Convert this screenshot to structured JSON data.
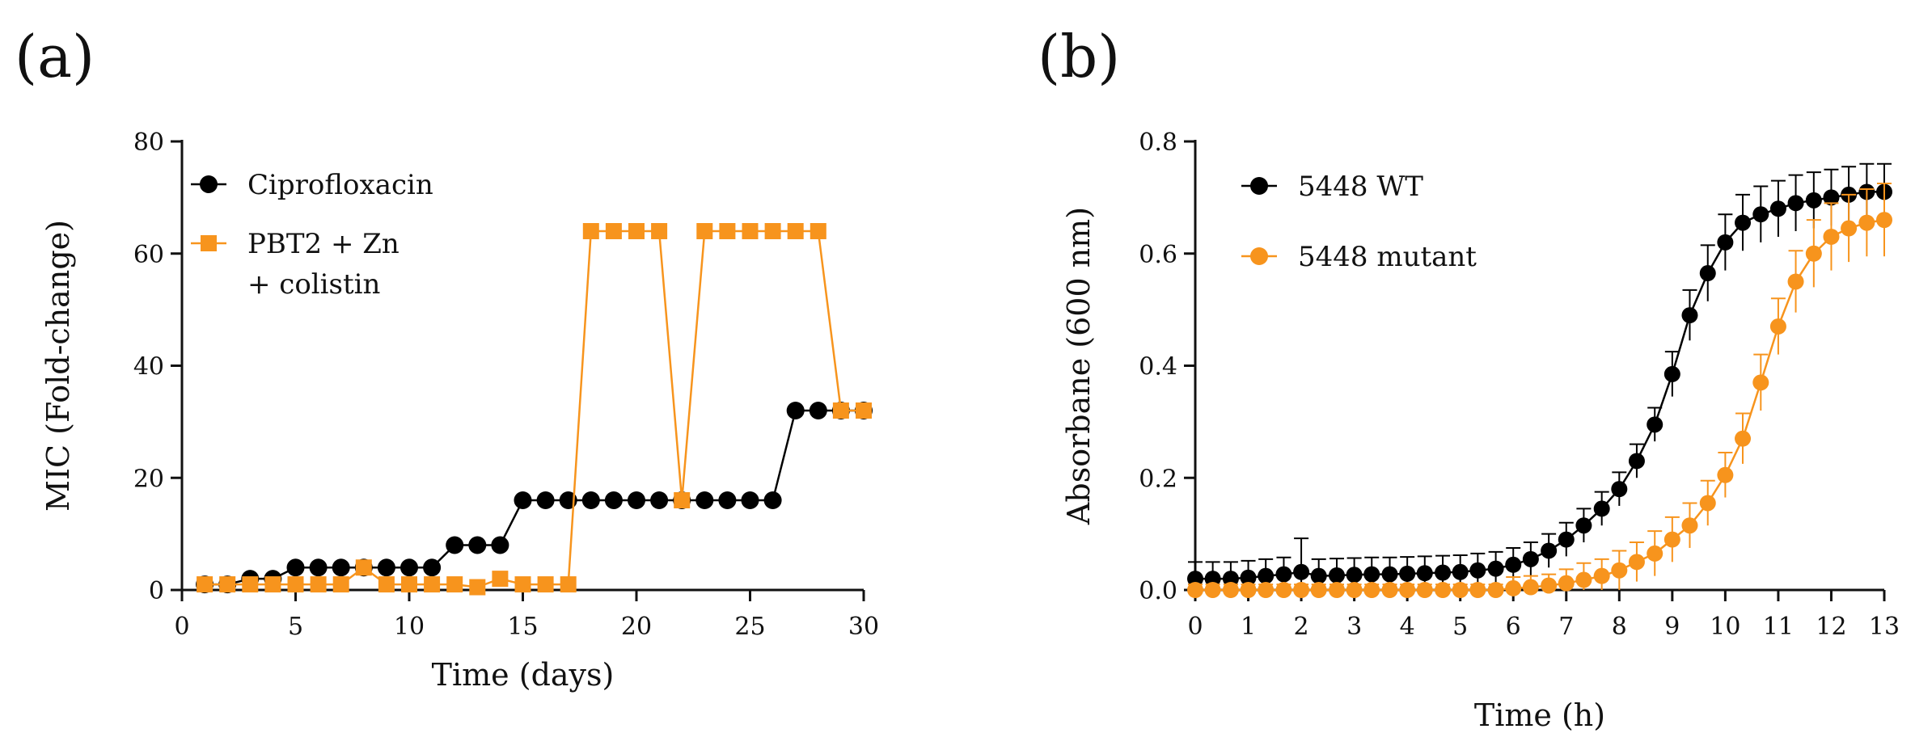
{
  "chart_data": [
    {
      "panel_label": "(a)",
      "type": "line",
      "xlabel": "Time (days)",
      "ylabel": "MIC (Fold-change)",
      "xlim": [
        0,
        30
      ],
      "ylim": [
        0,
        80
      ],
      "xticks": [
        0,
        5,
        10,
        15,
        20,
        25,
        30
      ],
      "yticks": [
        0,
        20,
        40,
        60,
        80
      ],
      "legend_position": "top-left",
      "series": [
        {
          "name": "Ciprofloxacin",
          "marker": "circle",
          "color": "#000000",
          "x": [
            1,
            2,
            3,
            4,
            5,
            6,
            7,
            8,
            9,
            10,
            11,
            12,
            13,
            14,
            15,
            16,
            17,
            18,
            19,
            20,
            21,
            22,
            23,
            24,
            25,
            26,
            27,
            28,
            29,
            30
          ],
          "y": [
            1,
            1,
            2,
            2,
            4,
            4,
            4,
            4,
            4,
            4,
            4,
            8,
            8,
            8,
            16,
            16,
            16,
            16,
            16,
            16,
            16,
            16,
            16,
            16,
            16,
            16,
            32,
            32,
            32,
            32
          ]
        },
        {
          "name": "PBT2 + Zn + colistin",
          "legend_lines": [
            "PBT2 + Zn",
            "+ colistin"
          ],
          "marker": "square",
          "color": "#F7941D",
          "x": [
            1,
            2,
            3,
            4,
            5,
            6,
            7,
            8,
            9,
            10,
            11,
            12,
            13,
            14,
            15,
            16,
            17,
            18,
            19,
            20,
            21,
            22,
            23,
            24,
            25,
            26,
            27,
            28,
            29,
            30
          ],
          "y": [
            1,
            1,
            1,
            1,
            1,
            1,
            1,
            4,
            1,
            1,
            1,
            1,
            0.5,
            2,
            1,
            1,
            1,
            64,
            64,
            64,
            64,
            16,
            64,
            64,
            64,
            64,
            64,
            64,
            32,
            32
          ]
        }
      ]
    },
    {
      "panel_label": "(b)",
      "type": "line",
      "xlabel": "Time (h)",
      "ylabel": "Absorbane (600 nm)",
      "xlim": [
        0,
        13
      ],
      "ylim": [
        0,
        0.8
      ],
      "xticks": [
        0,
        1,
        2,
        3,
        4,
        5,
        6,
        7,
        8,
        9,
        10,
        11,
        12,
        13
      ],
      "yticks": [
        0.0,
        0.2,
        0.4,
        0.6,
        0.8
      ],
      "ytick_labels": [
        "0.0",
        "0.2",
        "0.4",
        "0.6",
        "0.8"
      ],
      "legend_position": "top-left",
      "error_bars": true,
      "series": [
        {
          "name": "5448 WT",
          "marker": "circle",
          "color": "#000000",
          "x": [
            0,
            0.33,
            0.67,
            1,
            1.33,
            1.67,
            2,
            2.33,
            2.67,
            3,
            3.33,
            3.67,
            4,
            4.33,
            4.67,
            5,
            5.33,
            5.67,
            6,
            6.33,
            6.67,
            7,
            7.33,
            7.67,
            8,
            8.33,
            8.67,
            9,
            9.33,
            9.67,
            10,
            10.33,
            10.67,
            11,
            11.33,
            11.67,
            12,
            12.33,
            12.67,
            13
          ],
          "y": [
            0.02,
            0.02,
            0.02,
            0.022,
            0.025,
            0.028,
            0.032,
            0.025,
            0.026,
            0.027,
            0.028,
            0.028,
            0.029,
            0.03,
            0.031,
            0.032,
            0.035,
            0.038,
            0.045,
            0.055,
            0.07,
            0.09,
            0.115,
            0.145,
            0.18,
            0.23,
            0.295,
            0.385,
            0.49,
            0.565,
            0.62,
            0.655,
            0.67,
            0.68,
            0.69,
            0.695,
            0.7,
            0.705,
            0.71,
            0.71
          ],
          "err": [
            0.03,
            0.03,
            0.03,
            0.03,
            0.03,
            0.03,
            0.06,
            0.03,
            0.03,
            0.03,
            0.03,
            0.03,
            0.03,
            0.03,
            0.03,
            0.03,
            0.03,
            0.03,
            0.03,
            0.03,
            0.03,
            0.03,
            0.03,
            0.03,
            0.03,
            0.03,
            0.03,
            0.04,
            0.045,
            0.05,
            0.05,
            0.05,
            0.05,
            0.05,
            0.05,
            0.05,
            0.05,
            0.05,
            0.05,
            0.05
          ]
        },
        {
          "name": "5448 mutant",
          "marker": "circle",
          "color": "#F7941D",
          "x": [
            0,
            0.33,
            0.67,
            1,
            1.33,
            1.67,
            2,
            2.33,
            2.67,
            3,
            3.33,
            3.67,
            4,
            4.33,
            4.67,
            5,
            5.33,
            5.67,
            6,
            6.33,
            6.67,
            7,
            7.33,
            7.67,
            8,
            8.33,
            8.67,
            9,
            9.33,
            9.67,
            10,
            10.33,
            10.67,
            11,
            11.33,
            11.67,
            12,
            12.33,
            12.67,
            13
          ],
          "y": [
            0.0,
            0.0,
            0.0,
            0.0,
            0.0,
            0.0,
            0.0,
            0.0,
            0.0,
            0.0,
            0.0,
            0.0,
            0.0,
            0.0,
            0.0,
            0.0,
            0.0,
            0.0,
            0.003,
            0.005,
            0.008,
            0.012,
            0.018,
            0.025,
            0.035,
            0.05,
            0.065,
            0.09,
            0.115,
            0.155,
            0.205,
            0.27,
            0.37,
            0.47,
            0.55,
            0.6,
            0.63,
            0.645,
            0.655,
            0.66
          ],
          "err": [
            0.01,
            0.01,
            0.01,
            0.01,
            0.01,
            0.01,
            0.01,
            0.01,
            0.01,
            0.01,
            0.01,
            0.01,
            0.01,
            0.01,
            0.01,
            0.01,
            0.01,
            0.01,
            0.02,
            0.02,
            0.02,
            0.025,
            0.03,
            0.03,
            0.035,
            0.035,
            0.04,
            0.04,
            0.04,
            0.04,
            0.04,
            0.045,
            0.05,
            0.05,
            0.055,
            0.06,
            0.06,
            0.06,
            0.06,
            0.065
          ]
        }
      ]
    }
  ]
}
